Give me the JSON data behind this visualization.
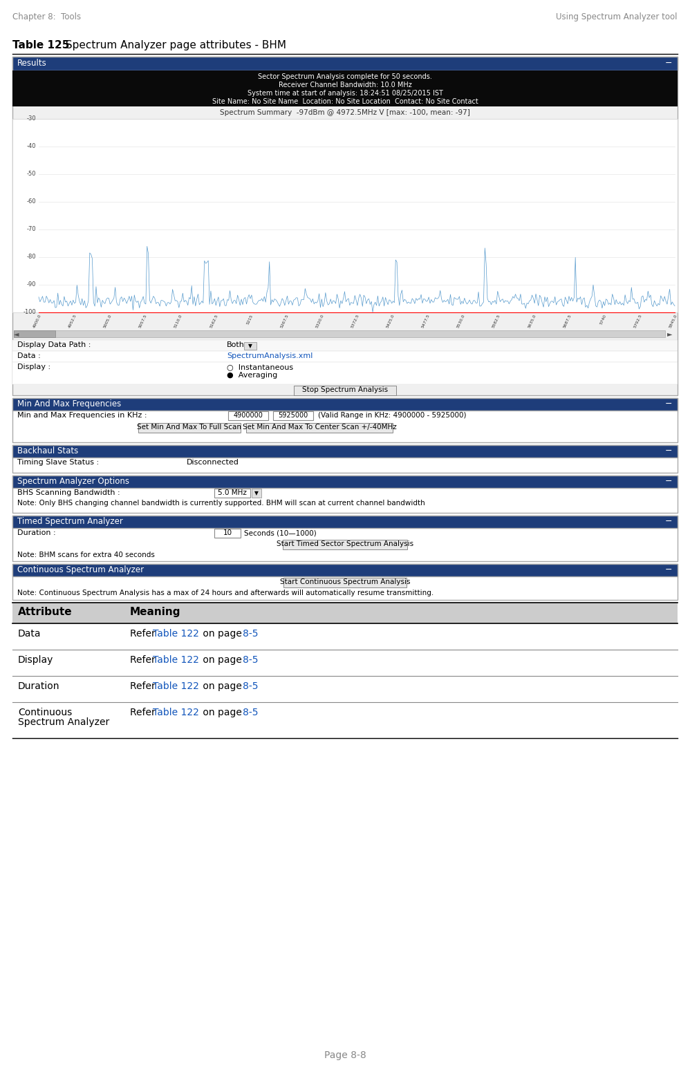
{
  "page_header_left": "Chapter 8:  Tools",
  "page_header_right": "Using Spectrum Analyzer tool",
  "table_title_bold": "Table 125",
  "table_title_rest": " Spectrum Analyzer page attributes - BHM",
  "spectrum_info_lines": [
    "Sector Spectrum Analysis complete for 50 seconds.",
    "Receiver Channel Bandwidth: 10.0 MHz",
    "System time at start of analysis: 18:24:51 08/25/2015 IST",
    "Site Name: No Site Name  Location: No Site Location  Contact: No Site Contact"
  ],
  "spectrum_summary": "Spectrum Summary  -97dBm @ 4972.5MHz V [max: -100, mean: -97]",
  "display_data_path_label": "Display Data Path :",
  "display_data_path_value": "Both",
  "data_label": "Data :",
  "data_value": "SpectrumAnalysis.xml",
  "display_label": "Display :",
  "display_option1": "Instantaneous",
  "display_option2": "Averaging",
  "stop_button": "Stop Spectrum Analysis",
  "min_max_header": "Min And Max Frequencies",
  "min_max_label": "Min and Max Frequencies in KHz :",
  "min_val": "4900000",
  "max_val": "5925000",
  "valid_range": "(Valid Range in KHz: 4900000 - 5925000)",
  "btn1": "Set Min And Max To Full Scan",
  "btn2": "Set Min And Max To Center Scan +/-40MHz",
  "backhaul_header": "Backhaul Stats",
  "timing_label": "Timing Slave Status :",
  "timing_value": "Disconnected",
  "spectrum_options_header": "Spectrum Analyzer Options",
  "bhs_label": "BHS Scanning Bandwidth :",
  "bhs_value": "5.0 MHz",
  "bhs_dropdown": "▼",
  "bhs_note": "Note: Only BHS changing channel bandwidth is currently supported. BHM will scan at current channel bandwidth",
  "timed_header": "Timed Spectrum Analyzer",
  "duration_label": "Duration :",
  "duration_value": "10",
  "duration_units": "Seconds (10—1000)",
  "start_timed_btn": "Start Timed Sector Spectrum Analysis",
  "timed_note": "Note: BHM scans for extra 40 seconds",
  "continuous_header": "Continuous Spectrum Analyzer",
  "start_continuous_btn": "Start Continuous Spectrum Analysis",
  "continuous_note": "Note: Continuous Spectrum Analysis has a max of 24 hours and afterwards will automatically resume transmitting.",
  "attr_header": "Attribute",
  "meaning_header": "Meaning",
  "table_rows": [
    [
      "Data",
      "Refer ",
      "Table 122",
      " on page ",
      "8-5"
    ],
    [
      "Display",
      "Refer ",
      "Table 122",
      " on page ",
      "8-5"
    ],
    [
      "Duration",
      "Refer ",
      "Table 122",
      " on page ",
      "8-5"
    ],
    [
      "Continuous\nSpectrum Analyzer",
      "Refer ",
      "Table 122",
      " on page ",
      "8-5"
    ]
  ],
  "page_footer": "Page 8-8",
  "header_dark_blue": "#1e3d7a",
  "link_color": "#1155bb",
  "page_bg": "#ffffff",
  "table_header_bg": "#cccccc",
  "box_border": "#aaaaaa",
  "text_color": "#000000",
  "header_text_color": "#ffffff",
  "gray_text": "#888888",
  "x_labels": [
    "4900.0",
    "4952.5",
    "5005.0",
    "5057.5",
    "5110.0",
    "5162.5",
    "5215",
    "5267.5",
    "5320.0",
    "5372.5",
    "5425.0",
    "5477.5",
    "5530.0",
    "5582.5",
    "5635.0",
    "5687.5",
    "5740",
    "5792.5",
    "5845.0"
  ]
}
